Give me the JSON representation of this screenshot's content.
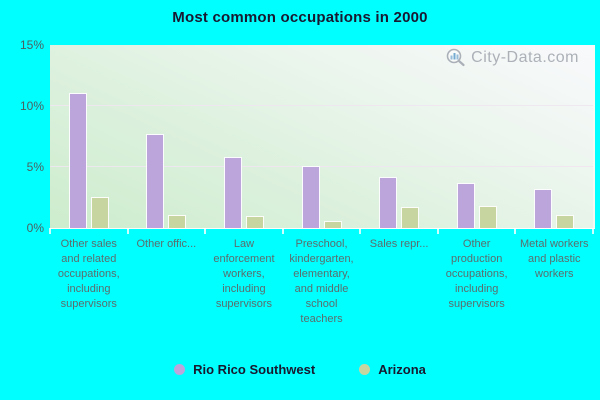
{
  "title": "Most common occupations in 2000",
  "watermark": {
    "text": "City-Data.com"
  },
  "colors": {
    "page_background": "#00ffff",
    "series1": "#bba5da",
    "series2": "#c7d5a1",
    "gridline": "#efe5f1",
    "axis_text": "#5c6d6d",
    "title_text": "#181830",
    "watermark_text": "#a6abb3"
  },
  "chart_data": {
    "type": "bar",
    "title": "Most common occupations in 2000",
    "categories": [
      "Other sales and related occupations, including supervisors",
      "Other offic...",
      "Law enforcement workers, including supervisors",
      "Preschool, kindergarten, elementary, and middle school teachers",
      "Sales repr...",
      "Other production occupations, including supervisors",
      "Metal workers and plastic workers"
    ],
    "series": [
      {
        "name": "Rio Rico Southwest",
        "color": "#bba5da",
        "values": [
          11.0,
          7.6,
          5.7,
          5.0,
          4.1,
          3.6,
          3.1
        ]
      },
      {
        "name": "Arizona",
        "color": "#c7d5a1",
        "values": [
          2.5,
          1.0,
          0.9,
          0.5,
          1.6,
          1.7,
          1.0
        ]
      }
    ],
    "xlabel": "",
    "ylabel": "",
    "ylim": [
      0,
      15
    ],
    "yticks": [
      {
        "value": 0,
        "label": "0%"
      },
      {
        "value": 5,
        "label": "5%"
      },
      {
        "value": 10,
        "label": "10%"
      },
      {
        "value": 15,
        "label": "15%"
      }
    ],
    "grid": true,
    "legend_position": "bottom"
  }
}
